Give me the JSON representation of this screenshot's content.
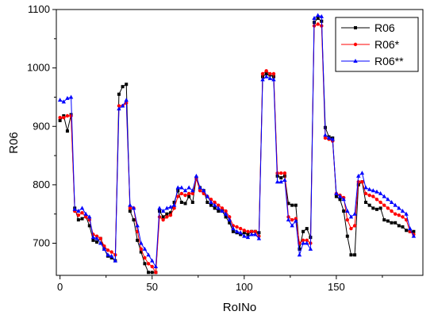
{
  "chart_data": {
    "type": "line",
    "xlabel": "RoINo",
    "ylabel": "R06",
    "xlim": [
      -2,
      197
    ],
    "ylim": [
      645,
      1100
    ],
    "x_ticks": [
      0,
      50,
      100,
      150
    ],
    "y_ticks": [
      700,
      800,
      900,
      1000,
      1100
    ],
    "grid": false,
    "legend_position": "top-right",
    "x": [
      0,
      2,
      4,
      6,
      8,
      10,
      12,
      14,
      16,
      18,
      20,
      22,
      24,
      26,
      28,
      30,
      32,
      34,
      36,
      38,
      40,
      42,
      44,
      46,
      48,
      50,
      52,
      54,
      56,
      58,
      60,
      62,
      64,
      66,
      68,
      70,
      72,
      74,
      76,
      78,
      80,
      82,
      84,
      86,
      88,
      90,
      92,
      94,
      96,
      98,
      100,
      102,
      104,
      106,
      108,
      110,
      112,
      114,
      116,
      118,
      120,
      122,
      124,
      126,
      128,
      130,
      132,
      134,
      136,
      138,
      140,
      142,
      144,
      146,
      148,
      150,
      152,
      154,
      156,
      158,
      160,
      162,
      164,
      166,
      168,
      170,
      172,
      174,
      176,
      178,
      180,
      182,
      184,
      186,
      188,
      190,
      192
    ],
    "series": [
      {
        "name": "R06",
        "color": "#000000",
        "marker": "square",
        "values": [
          910,
          918,
          892,
          920,
          760,
          740,
          742,
          746,
          730,
          705,
          702,
          708,
          690,
          678,
          675,
          670,
          955,
          968,
          972,
          755,
          740,
          705,
          685,
          665,
          650,
          650,
          650,
          755,
          745,
          750,
          752,
          770,
          790,
          770,
          768,
          780,
          770,
          812,
          795,
          790,
          770,
          765,
          760,
          755,
          755,
          745,
          735,
          720,
          718,
          715,
          718,
          715,
          720,
          720,
          718,
          985,
          990,
          988,
          985,
          815,
          812,
          815,
          768,
          765,
          765,
          690,
          720,
          725,
          710,
          1078,
          1085,
          1080,
          898,
          882,
          880,
          780,
          775,
          755,
          712,
          680,
          680,
          800,
          805,
          770,
          765,
          760,
          758,
          760,
          740,
          738,
          735,
          735,
          730,
          728,
          722,
          720,
          720
        ]
      },
      {
        "name": "R06*",
        "color": "#ff0000",
        "marker": "circle",
        "values": [
          915,
          915,
          918,
          918,
          755,
          748,
          752,
          745,
          740,
          715,
          712,
          708,
          695,
          688,
          685,
          680,
          935,
          935,
          940,
          760,
          760,
          720,
          690,
          675,
          665,
          660,
          650,
          745,
          740,
          745,
          748,
          760,
          780,
          785,
          782,
          785,
          785,
          810,
          790,
          785,
          780,
          775,
          770,
          765,
          760,
          755,
          745,
          730,
          728,
          725,
          722,
          720,
          720,
          720,
          712,
          990,
          995,
          990,
          990,
          820,
          820,
          820,
          745,
          740,
          742,
          700,
          705,
          705,
          700,
          1072,
          1075,
          1072,
          880,
          878,
          875,
          785,
          782,
          778,
          740,
          725,
          730,
          805,
          805,
          785,
          782,
          780,
          775,
          770,
          765,
          760,
          755,
          750,
          748,
          745,
          740,
          720,
          715
        ]
      },
      {
        "name": "R06**",
        "color": "#0000ff",
        "marker": "triangle",
        "values": [
          945,
          942,
          948,
          950,
          758,
          755,
          760,
          750,
          745,
          710,
          708,
          700,
          690,
          680,
          678,
          670,
          930,
          935,
          945,
          765,
          760,
          730,
          700,
          690,
          680,
          670,
          660,
          760,
          755,
          760,
          762,
          765,
          795,
          795,
          790,
          795,
          790,
          815,
          795,
          790,
          780,
          770,
          765,
          760,
          755,
          750,
          740,
          725,
          720,
          718,
          712,
          710,
          715,
          715,
          708,
          980,
          985,
          982,
          980,
          805,
          805,
          808,
          740,
          730,
          738,
          680,
          700,
          700,
          690,
          1085,
          1090,
          1088,
          885,
          880,
          878,
          785,
          780,
          775,
          755,
          745,
          750,
          815,
          820,
          795,
          792,
          790,
          788,
          785,
          780,
          775,
          770,
          765,
          760,
          755,
          750,
          725,
          712
        ]
      }
    ]
  }
}
